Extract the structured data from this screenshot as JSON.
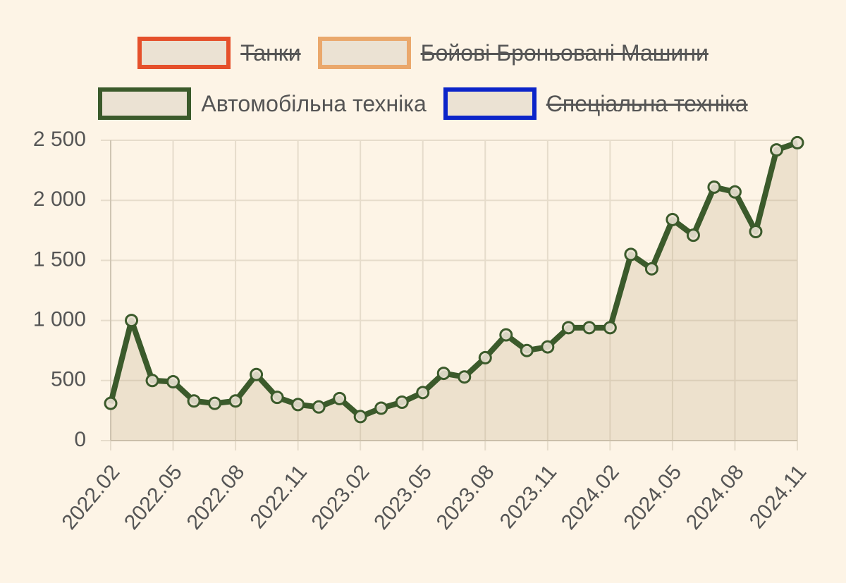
{
  "chart_data": {
    "type": "line",
    "categories": [
      "2022.02",
      null,
      null,
      "2022.05",
      null,
      null,
      "2022.08",
      null,
      null,
      "2022.11",
      null,
      null,
      "2023.02",
      null,
      null,
      "2023.05",
      null,
      null,
      "2023.08",
      null,
      null,
      "2023.11",
      null,
      null,
      "2024.02",
      null,
      null,
      "2024.05",
      null,
      null,
      "2024.08",
      null,
      null,
      "2024.11"
    ],
    "series": [
      {
        "name": "Танки",
        "color": "#e5502b",
        "hidden": true
      },
      {
        "name": "Бойові Броньовані Машини",
        "color": "#eaa86c",
        "hidden": true
      },
      {
        "name": "Автомобільна техніка",
        "color": "#3b5a2b",
        "hidden": false,
        "values": [
          310,
          1000,
          500,
          490,
          330,
          310,
          330,
          550,
          360,
          300,
          280,
          350,
          200,
          270,
          320,
          400,
          560,
          530,
          690,
          880,
          750,
          780,
          940,
          940,
          940,
          1550,
          1430,
          1840,
          1710,
          2110,
          2070,
          1740,
          2420,
          2480
        ]
      },
      {
        "name": "Спеціальна техніка",
        "color": "#0b24c9",
        "hidden": true
      }
    ],
    "ylim": [
      0,
      2500
    ],
    "yticks": [
      0,
      500,
      {
        "value": 1000,
        "label": "1 000"
      },
      {
        "value": 1500,
        "label": "1 500"
      },
      {
        "value": 2000,
        "label": "2 000"
      },
      {
        "value": 2500,
        "label": "2 500"
      }
    ],
    "grid": true
  }
}
